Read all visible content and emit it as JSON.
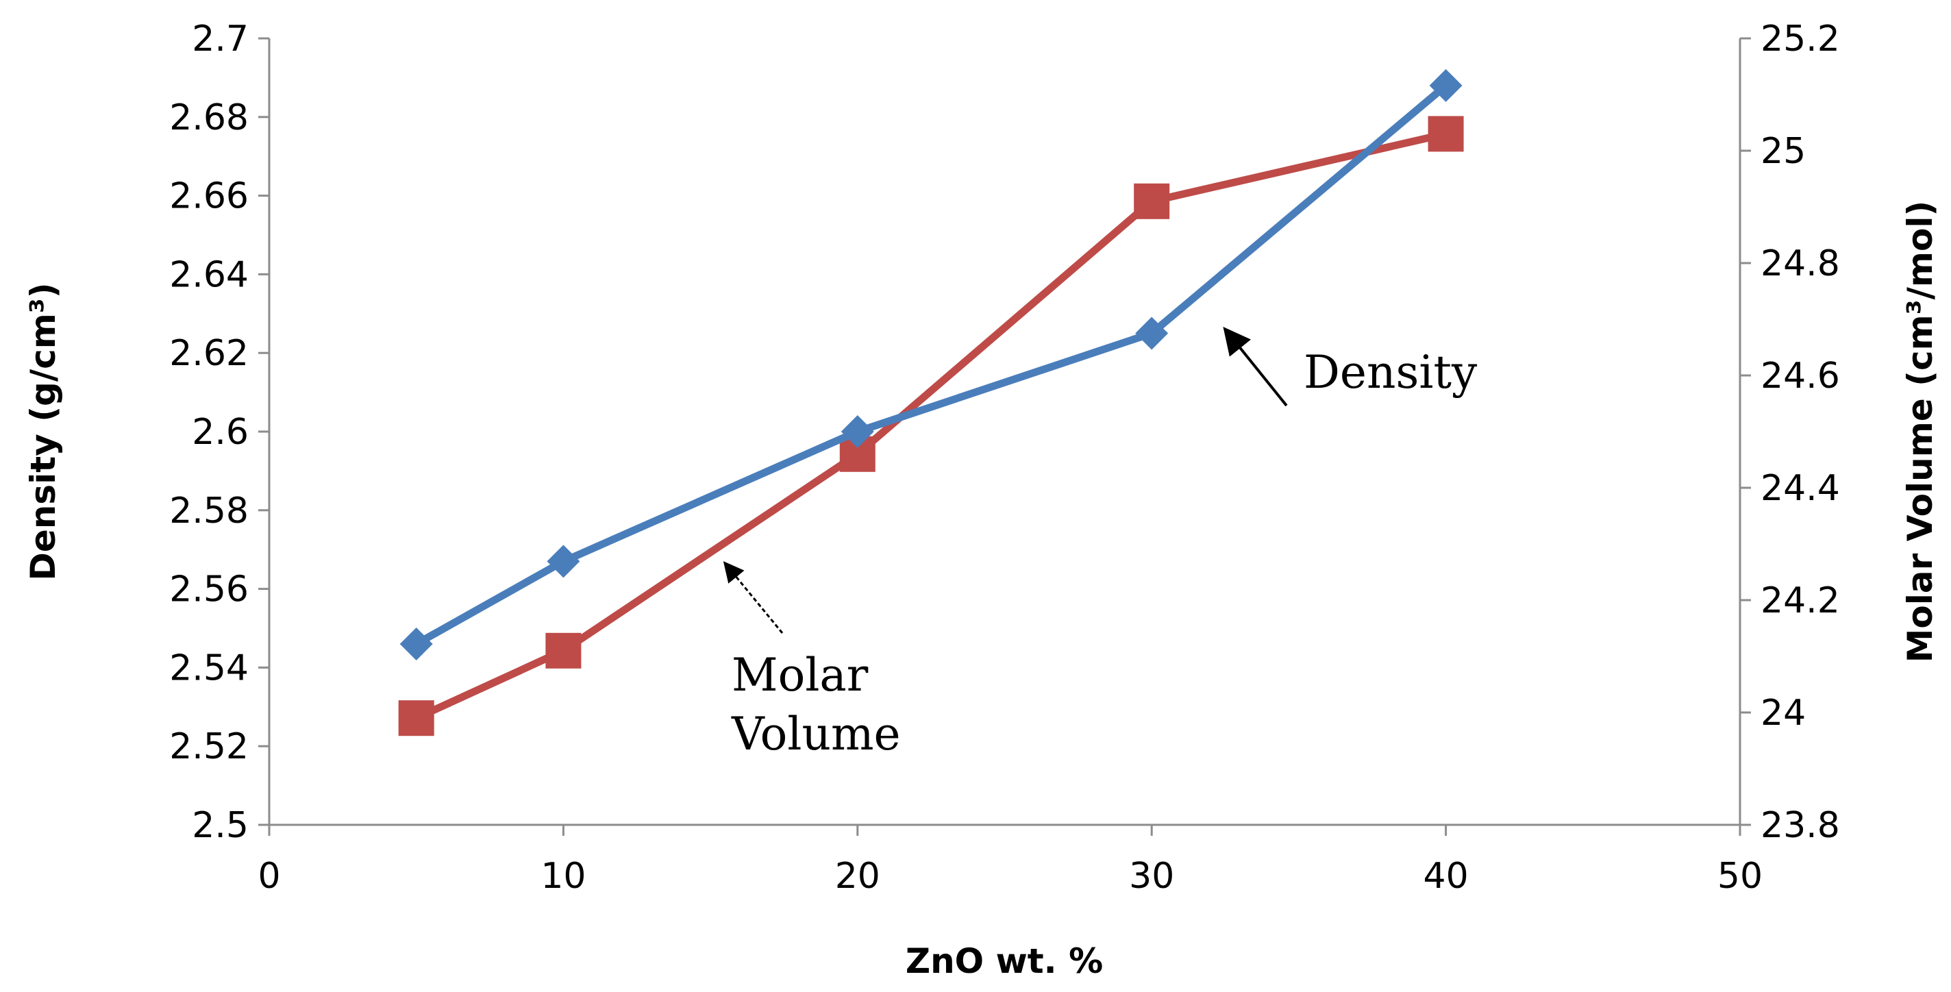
{
  "chart_data": {
    "type": "line",
    "title": "",
    "xlabel": "ZnO wt. %",
    "ylabel_left": "Density (g/cm³)",
    "ylabel_right": "Molar Volume (cm³/mol)",
    "x": [
      5,
      10,
      20,
      30,
      40
    ],
    "xlim": [
      0,
      50
    ],
    "xticks": [
      "0",
      "10",
      "20",
      "30",
      "40",
      "50"
    ],
    "ylim_left": [
      2.5,
      2.7
    ],
    "yticks_left": [
      "2.5",
      "2.52",
      "2.54",
      "2.56",
      "2.58",
      "2.6",
      "2.62",
      "2.64",
      "2.66",
      "2.68",
      "2.7"
    ],
    "ylim_right": [
      23.8,
      25.2
    ],
    "yticks_right": [
      "23.8",
      "24",
      "24.2",
      "24.4",
      "24.6",
      "24.8",
      "25",
      "25.2"
    ],
    "grid": false,
    "series": [
      {
        "name": "Density",
        "axis": "left",
        "marker": "diamond",
        "color": "#4a7ebb",
        "values": [
          2.546,
          2.567,
          2.6,
          2.625,
          2.688
        ]
      },
      {
        "name": "Molar Volume",
        "axis": "right",
        "marker": "square",
        "color": "#be4b48",
        "values": [
          23.99,
          24.11,
          24.46,
          24.91,
          25.03
        ]
      }
    ],
    "annotations": [
      {
        "id": "density",
        "lines": [
          "Density"
        ]
      },
      {
        "id": "molar",
        "lines": [
          "Molar",
          "Volume"
        ]
      }
    ]
  }
}
